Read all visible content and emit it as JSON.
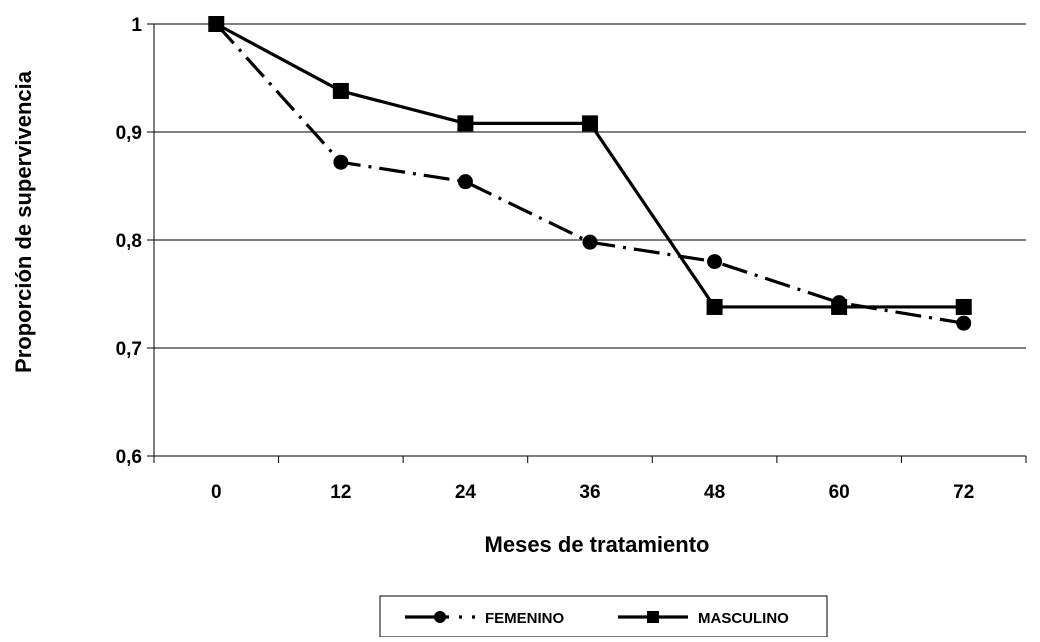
{
  "chart_data": {
    "type": "line",
    "xlabel": "Meses de tratamiento",
    "ylabel": "Proporción de supervivencia",
    "x": [
      0,
      12,
      24,
      36,
      48,
      60,
      72
    ],
    "x_tick_labels": [
      "0",
      "12",
      "24",
      "36",
      "48",
      "60",
      "72"
    ],
    "y_tick_labels": [
      "0,6",
      "0,7",
      "0,8",
      "0,9",
      "1"
    ],
    "ylim": [
      0.6,
      1.0
    ],
    "y_ticks": [
      0.6,
      0.7,
      0.8,
      0.9,
      1.0
    ],
    "grid": "horizontal",
    "legend_position": "bottom-center",
    "series": [
      {
        "name": "FEMENINO",
        "line_style": "dash-dot",
        "marker": "circle",
        "color": "#000000",
        "values": [
          1.0,
          0.872,
          0.854,
          0.798,
          0.78,
          0.742,
          0.723
        ]
      },
      {
        "name": "MASCULINO",
        "line_style": "solid",
        "marker": "square",
        "color": "#000000",
        "values": [
          1.0,
          0.938,
          0.908,
          0.908,
          0.738,
          0.738,
          0.738
        ]
      }
    ]
  }
}
